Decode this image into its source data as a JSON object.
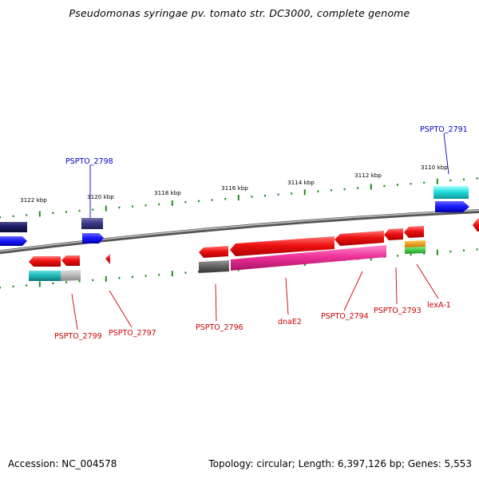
{
  "title": "Pseudomonas syringae pv. tomato str. DC3000, complete genome",
  "footer": {
    "accession": "Accession: NC_004578",
    "summary": "Topology: circular; Length: 6,397,126 bp; Genes: 5,553"
  },
  "colors": {
    "backbone": "#8a8a8a",
    "tick": "#1e8a1e",
    "forward_label": "#0000cc",
    "reverse_label": "#cc0000",
    "gene_red": "#ee1111",
    "gene_blue": "#1a1aff",
    "gene_navy": "#1a1a66",
    "gene_slate": "#3a3a88",
    "gene_cyan": "#22dddd",
    "gene_magenta": "#ee3399",
    "gene_gray": "#666666",
    "gene_lightgray": "#bbbbbb",
    "gene_orange": "#ee9900",
    "gene_green": "#33bb33"
  },
  "kbp_labels": [
    "3122 kbp",
    "3120 kbp",
    "3118 kbp",
    "3116 kbp",
    "3114 kbp",
    "3112 kbp",
    "3110 kbp"
  ],
  "forward_gene_labels": [
    "PSPTO_2798",
    "PSPTO_2791"
  ],
  "reverse_gene_labels": [
    "PSPTO_2799",
    "PSPTO_2797",
    "PSPTO_2796",
    "dnaE2",
    "PSPTO_2794",
    "PSPTO_2793",
    "lexA-1"
  ]
}
